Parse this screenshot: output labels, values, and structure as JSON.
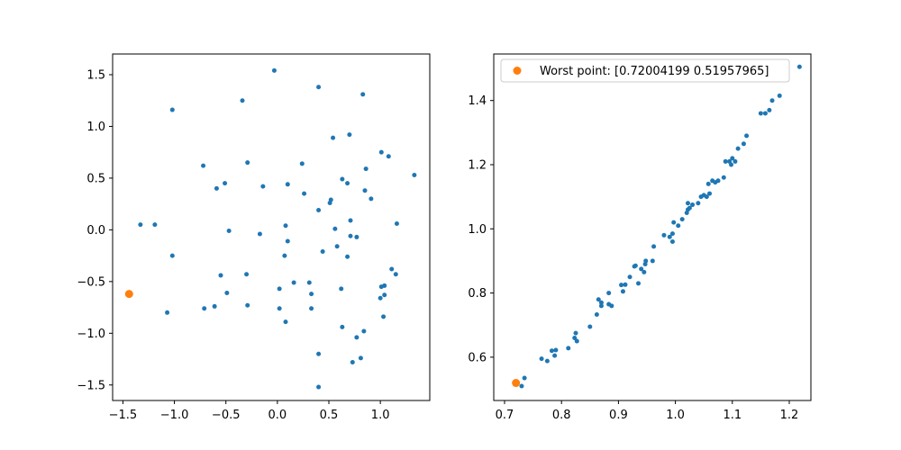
{
  "chart_data": [
    {
      "type": "scatter",
      "xlim": [
        -1.6,
        1.48
      ],
      "ylim": [
        -1.65,
        1.7
      ],
      "xticks": [
        -1.5,
        -1.0,
        -0.5,
        0.0,
        0.5,
        1.0
      ],
      "xtick_labels": [
        "−1.5",
        "−1.0",
        "−0.5",
        "0.0",
        "0.5",
        "1.0"
      ],
      "yticks": [
        -1.5,
        -1.0,
        -0.5,
        0.0,
        0.5,
        1.0,
        1.5
      ],
      "ytick_labels": [
        "−1.5",
        "−1.0",
        "−0.5",
        "0.0",
        "0.5",
        "1.0",
        "1.5"
      ],
      "grid": false,
      "series": [
        {
          "color": "#1f77b4",
          "marker_size": "small",
          "points": [
            [
              -0.03,
              1.54
            ],
            [
              0.4,
              1.38
            ],
            [
              0.83,
              1.31
            ],
            [
              -0.34,
              1.25
            ],
            [
              -1.02,
              1.16
            ],
            [
              0.7,
              0.92
            ],
            [
              0.54,
              0.89
            ],
            [
              1.01,
              0.75
            ],
            [
              1.08,
              0.71
            ],
            [
              -0.72,
              0.62
            ],
            [
              -0.29,
              0.65
            ],
            [
              0.24,
              0.64
            ],
            [
              1.33,
              0.53
            ],
            [
              0.86,
              0.59
            ],
            [
              -0.51,
              0.45
            ],
            [
              -0.59,
              0.4
            ],
            [
              -0.14,
              0.42
            ],
            [
              0.1,
              0.44
            ],
            [
              0.63,
              0.49
            ],
            [
              0.68,
              0.45
            ],
            [
              0.26,
              0.35
            ],
            [
              0.85,
              0.38
            ],
            [
              0.91,
              0.3
            ],
            [
              0.52,
              0.29
            ],
            [
              0.51,
              0.26
            ],
            [
              0.4,
              0.19
            ],
            [
              0.71,
              0.09
            ],
            [
              -1.33,
              0.05
            ],
            [
              -1.19,
              0.05
            ],
            [
              0.08,
              0.04
            ],
            [
              1.16,
              0.06
            ],
            [
              0.56,
              0.01
            ],
            [
              -0.47,
              -0.01
            ],
            [
              -0.17,
              -0.04
            ],
            [
              0.71,
              -0.06
            ],
            [
              0.77,
              -0.07
            ],
            [
              0.1,
              -0.11
            ],
            [
              0.58,
              -0.16
            ],
            [
              -1.02,
              -0.25
            ],
            [
              0.07,
              -0.25
            ],
            [
              0.44,
              -0.21
            ],
            [
              0.68,
              -0.26
            ],
            [
              -0.55,
              -0.44
            ],
            [
              -0.3,
              -0.43
            ],
            [
              1.11,
              -0.38
            ],
            [
              1.15,
              -0.43
            ],
            [
              0.31,
              -0.51
            ],
            [
              0.16,
              -0.51
            ],
            [
              1.04,
              -0.54
            ],
            [
              1.01,
              -0.55
            ],
            [
              0.62,
              -0.57
            ],
            [
              0.02,
              -0.57
            ],
            [
              -0.49,
              -0.61
            ],
            [
              0.33,
              -0.62
            ],
            [
              1.04,
              -0.63
            ],
            [
              1.0,
              -0.66
            ],
            [
              -0.29,
              -0.73
            ],
            [
              -0.61,
              -0.74
            ],
            [
              -0.71,
              -0.76
            ],
            [
              0.02,
              -0.76
            ],
            [
              0.33,
              -0.76
            ],
            [
              -1.07,
              -0.8
            ],
            [
              1.03,
              -0.84
            ],
            [
              0.08,
              -0.89
            ],
            [
              0.63,
              -0.94
            ],
            [
              0.84,
              -0.98
            ],
            [
              0.77,
              -1.04
            ],
            [
              0.4,
              -1.2
            ],
            [
              0.81,
              -1.24
            ],
            [
              0.73,
              -1.28
            ],
            [
              0.4,
              -1.52
            ]
          ]
        },
        {
          "color": "#ff7f0e",
          "marker_size": "large",
          "points": [
            [
              -1.44,
              -0.62
            ]
          ]
        }
      ]
    },
    {
      "type": "scatter",
      "xlim": [
        0.681,
        1.238
      ],
      "ylim": [
        0.465,
        1.545
      ],
      "xticks": [
        0.7,
        0.8,
        0.9,
        1.0,
        1.1,
        1.2
      ],
      "xtick_labels": [
        "0.7",
        "0.8",
        "0.9",
        "1.0",
        "1.1",
        "1.2"
      ],
      "yticks": [
        0.6,
        0.8,
        1.0,
        1.2,
        1.4
      ],
      "ytick_labels": [
        "0.6",
        "0.8",
        "1.0",
        "1.2",
        "1.4"
      ],
      "grid": false,
      "legend": {
        "location": "upper-left",
        "entries": [
          {
            "label": "Worst point: [0.72004199 0.51957965]",
            "color": "#ff7f0e"
          }
        ]
      },
      "series": [
        {
          "color": "#1f77b4",
          "marker_size": "small",
          "points": [
            [
              0.735,
              0.535
            ],
            [
              0.73,
              0.51
            ],
            [
              0.765,
              0.595
            ],
            [
              0.775,
              0.588
            ],
            [
              0.783,
              0.62
            ],
            [
              0.79,
              0.622
            ],
            [
              0.788,
              0.605
            ],
            [
              0.812,
              0.628
            ],
            [
              0.823,
              0.66
            ],
            [
              0.825,
              0.675
            ],
            [
              0.827,
              0.65
            ],
            [
              0.85,
              0.695
            ],
            [
              0.862,
              0.733
            ],
            [
              0.865,
              0.78
            ],
            [
              0.87,
              0.76
            ],
            [
              0.87,
              0.77
            ],
            [
              0.883,
              0.765
            ],
            [
              0.888,
              0.76
            ],
            [
              0.883,
              0.8
            ],
            [
              0.905,
              0.825
            ],
            [
              0.912,
              0.826
            ],
            [
              0.908,
              0.805
            ],
            [
              0.92,
              0.85
            ],
            [
              0.928,
              0.883
            ],
            [
              0.93,
              0.885
            ],
            [
              0.935,
              0.83
            ],
            [
              0.94,
              0.875
            ],
            [
              0.945,
              0.865
            ],
            [
              0.947,
              0.89
            ],
            [
              0.948,
              0.9
            ],
            [
              0.96,
              0.9
            ],
            [
              0.962,
              0.945
            ],
            [
              0.98,
              0.98
            ],
            [
              0.99,
              0.975
            ],
            [
              0.995,
              0.96
            ],
            [
              0.995,
              0.985
            ],
            [
              0.997,
              1.02
            ],
            [
              1.005,
              1.01
            ],
            [
              1.012,
              1.03
            ],
            [
              1.02,
              1.05
            ],
            [
              1.022,
              1.06
            ],
            [
              1.022,
              1.08
            ],
            [
              1.025,
              1.065
            ],
            [
              1.03,
              1.075
            ],
            [
              1.04,
              1.08
            ],
            [
              1.045,
              1.1
            ],
            [
              1.05,
              1.105
            ],
            [
              1.055,
              1.1
            ],
            [
              1.058,
              1.14
            ],
            [
              1.06,
              1.11
            ],
            [
              1.065,
              1.15
            ],
            [
              1.07,
              1.145
            ],
            [
              1.075,
              1.15
            ],
            [
              1.085,
              1.16
            ],
            [
              1.088,
              1.21
            ],
            [
              1.095,
              1.21
            ],
            [
              1.098,
              1.2
            ],
            [
              1.1,
              1.22
            ],
            [
              1.105,
              1.21
            ],
            [
              1.11,
              1.25
            ],
            [
              1.12,
              1.265
            ],
            [
              1.125,
              1.29
            ],
            [
              1.15,
              1.36
            ],
            [
              1.158,
              1.36
            ],
            [
              1.165,
              1.37
            ],
            [
              1.17,
              1.4
            ],
            [
              1.183,
              1.415
            ],
            [
              1.218,
              1.505
            ]
          ]
        },
        {
          "color": "#ff7f0e",
          "marker_size": "large",
          "points": [
            [
              0.72004199,
              0.51957965
            ]
          ]
        }
      ]
    }
  ]
}
